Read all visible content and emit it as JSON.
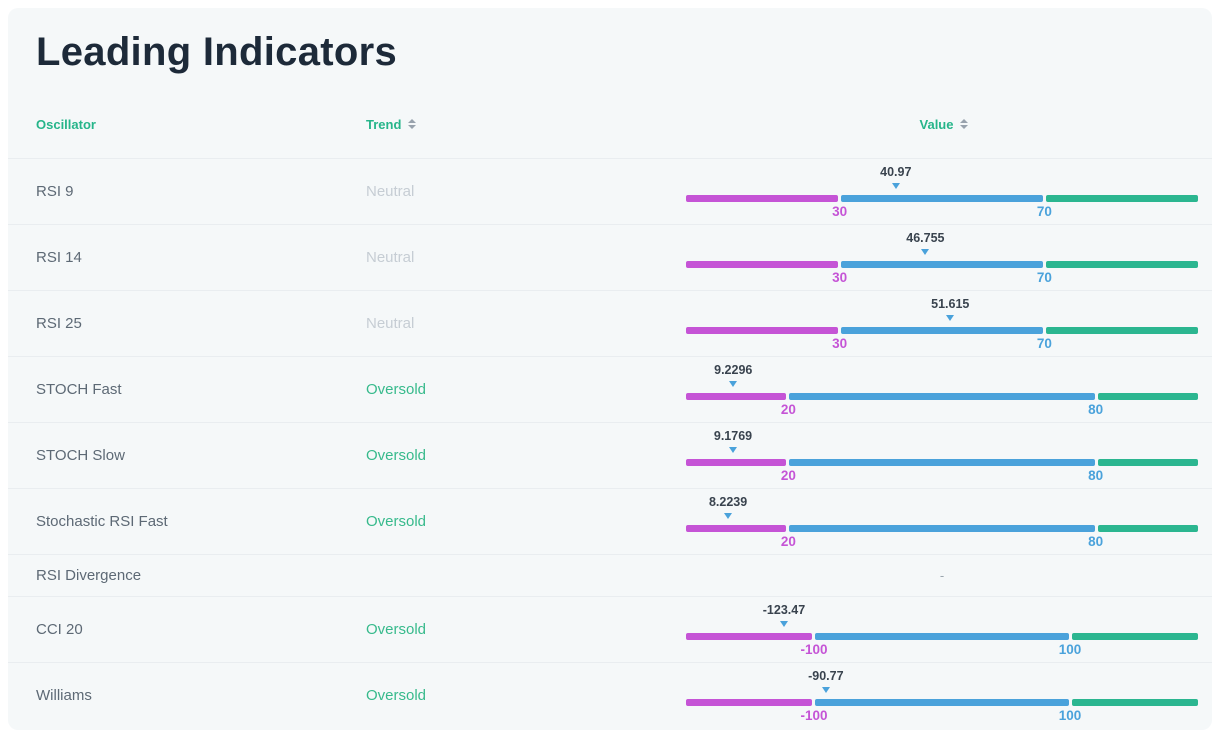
{
  "title": "Leading Indicators",
  "columns": [
    {
      "label": "Oscillator",
      "sortable": false
    },
    {
      "label": "Trend",
      "sortable": true
    },
    {
      "label": "Value",
      "sortable": true
    }
  ],
  "rows": [
    {
      "oscillator": "RSI 9",
      "trend": "Neutral",
      "trend_type": "neutral",
      "gauge": {
        "value": 40.97,
        "value_label": "40.97",
        "min": 0,
        "max": 100,
        "low": 30,
        "high": 70,
        "low_label": "30",
        "high_label": "70"
      }
    },
    {
      "oscillator": "RSI 14",
      "trend": "Neutral",
      "trend_type": "neutral",
      "gauge": {
        "value": 46.755,
        "value_label": "46.755",
        "min": 0,
        "max": 100,
        "low": 30,
        "high": 70,
        "low_label": "30",
        "high_label": "70"
      }
    },
    {
      "oscillator": "RSI 25",
      "trend": "Neutral",
      "trend_type": "neutral",
      "gauge": {
        "value": 51.615,
        "value_label": "51.615",
        "min": 0,
        "max": 100,
        "low": 30,
        "high": 70,
        "low_label": "30",
        "high_label": "70"
      }
    },
    {
      "oscillator": "STOCH Fast",
      "trend": "Oversold",
      "trend_type": "oversold",
      "gauge": {
        "value": 9.2296,
        "value_label": "9.2296",
        "min": 0,
        "max": 100,
        "low": 20,
        "high": 80,
        "low_label": "20",
        "high_label": "80"
      }
    },
    {
      "oscillator": "STOCH Slow",
      "trend": "Oversold",
      "trend_type": "oversold",
      "gauge": {
        "value": 9.1769,
        "value_label": "9.1769",
        "min": 0,
        "max": 100,
        "low": 20,
        "high": 80,
        "low_label": "20",
        "high_label": "80"
      }
    },
    {
      "oscillator": "Stochastic RSI Fast",
      "trend": "Oversold",
      "trend_type": "oversold",
      "gauge": {
        "value": 8.2239,
        "value_label": "8.2239",
        "min": 0,
        "max": 100,
        "low": 20,
        "high": 80,
        "low_label": "20",
        "high_label": "80"
      }
    },
    {
      "oscillator": "RSI Divergence",
      "trend": "",
      "trend_type": "none",
      "gauge": null,
      "value_placeholder": "-"
    },
    {
      "oscillator": "CCI 20",
      "trend": "Oversold",
      "trend_type": "oversold",
      "gauge": {
        "value": -123.47,
        "value_label": "-123.47",
        "min": -200,
        "max": 200,
        "low": -100,
        "high": 100,
        "low_label": "-100",
        "high_label": "100"
      }
    },
    {
      "oscillator": "Williams",
      "trend": "Oversold",
      "trend_type": "oversold",
      "gauge": {
        "value": -90.77,
        "value_label": "-90.77",
        "min": -200,
        "max": 200,
        "low": -100,
        "high": 100,
        "low_label": "-100",
        "high_label": "100"
      }
    }
  ],
  "colors": {
    "title_text": "#1d2a39",
    "header_accent": "#26b58a",
    "trend_oversold": "#37ba8c",
    "trend_neutral": "#c6cdd4",
    "bar_low": "#c554d6",
    "bar_mid": "#4aa2db",
    "bar_high": "#2bb690",
    "marker": "#4aa2db",
    "value_text": "#39434e"
  }
}
